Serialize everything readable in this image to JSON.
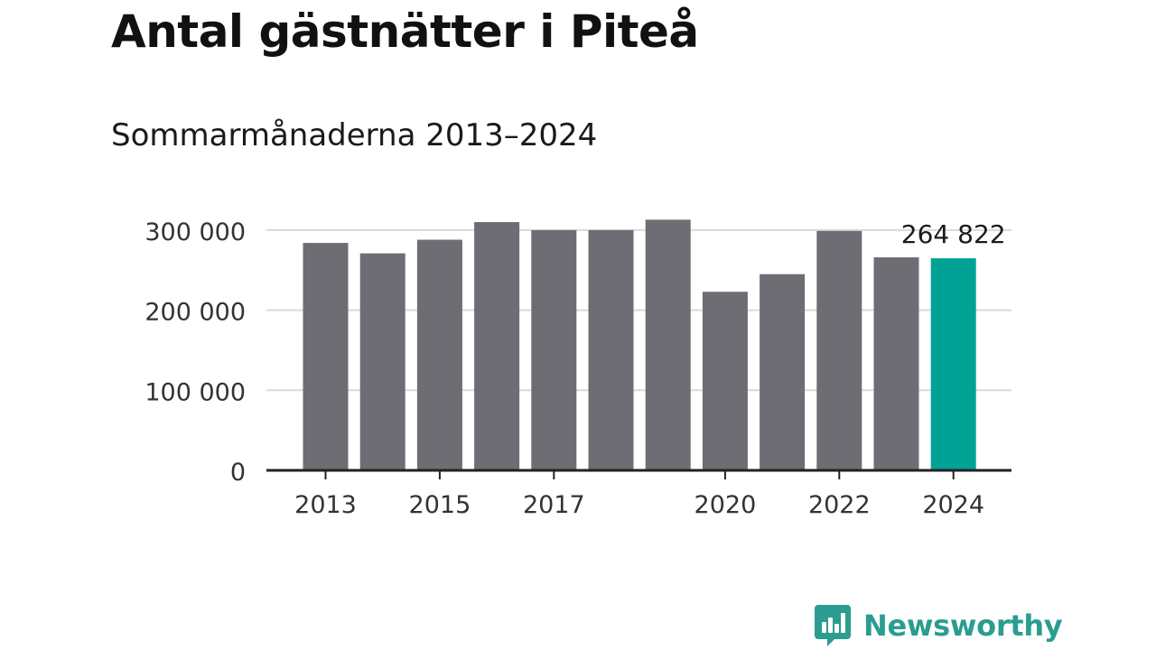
{
  "title": "Antal gästnätter i Piteå",
  "subtitle": "Sommarmånaderna 2013–2024",
  "brand": {
    "name": "Newsworthy",
    "color": "#2a9d90"
  },
  "colors": {
    "bar": "#6e6d74",
    "highlight": "#00a295",
    "grid": "#d9d9d9",
    "axis": "#222222"
  },
  "chart_data": {
    "type": "bar",
    "categories": [
      "2013",
      "2014",
      "2015",
      "2016",
      "2017",
      "2018",
      "2019",
      "2020",
      "2021",
      "2022",
      "2023",
      "2024"
    ],
    "values": [
      284000,
      271000,
      288000,
      310000,
      300000,
      300000,
      313000,
      223000,
      245000,
      299000,
      266000,
      264822
    ],
    "x_tick_labels": [
      "2013",
      "2015",
      "2017",
      "2020",
      "2022",
      "2024"
    ],
    "y_ticks": [
      0,
      100000,
      200000,
      300000
    ],
    "y_tick_labels": [
      "0",
      "100 000",
      "200 000",
      "300 000"
    ],
    "ylim": [
      0,
      320000
    ],
    "highlight_index": 11,
    "annotation": {
      "index": 11,
      "text": "264 822"
    },
    "grid": true,
    "xlabel": "",
    "ylabel": ""
  }
}
